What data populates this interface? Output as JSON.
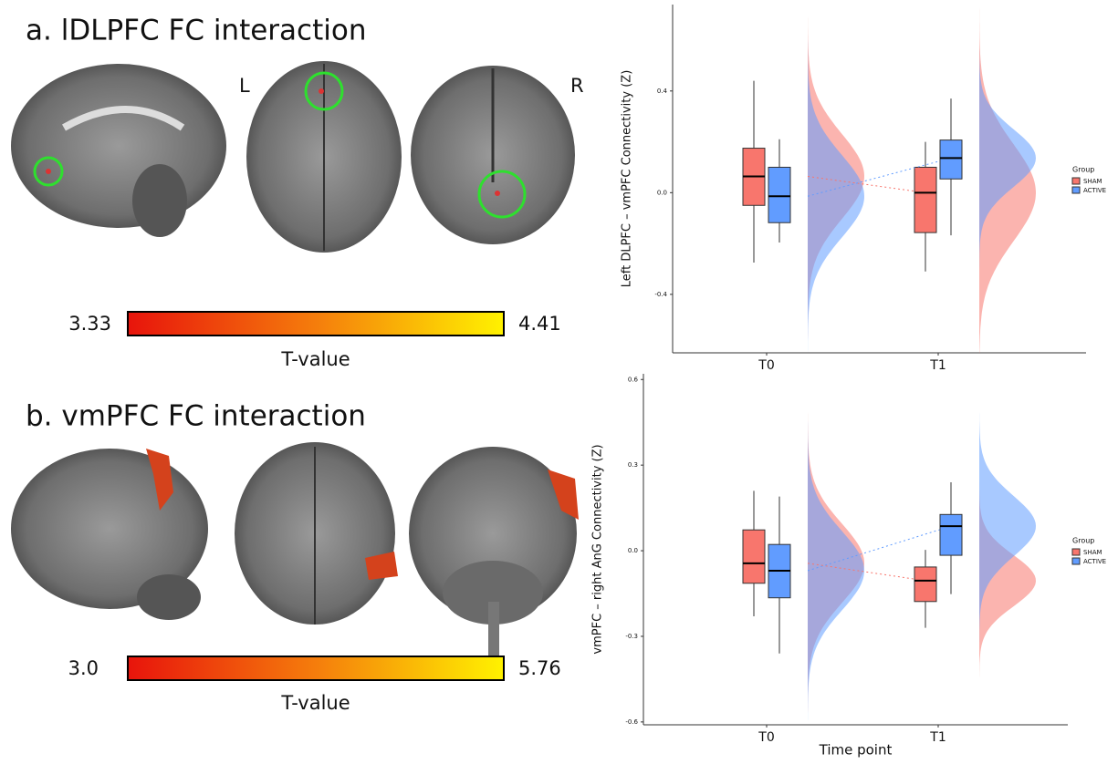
{
  "figure": {
    "panels": [
      {
        "title": "a. lDLPFC FC interaction",
        "hemisphere_labels": [
          "L",
          "R"
        ],
        "colorbar": {
          "min": "3.33",
          "max": "4.41",
          "label": "T-value"
        }
      },
      {
        "title": "b. vmPFC FC interaction",
        "colorbar": {
          "min": "3.0",
          "max": "5.76",
          "label": "T-value"
        }
      }
    ]
  },
  "chart_data": [
    {
      "type": "raincloud",
      "ylabel": "Left DLPFC – vmPFC Connectivity (Z)",
      "categories": [
        "T0",
        "T1"
      ],
      "ylim": [
        -0.63,
        0.74
      ],
      "yticks": [
        -0.4,
        {
          "value": 0,
          "label": "0.0"
        },
        0.4
      ],
      "legend_title": "Group",
      "series": [
        {
          "name": "SHAM",
          "color": "#f8766d",
          "low": [
            -0.275,
            -0.31
          ],
          "q1": [
            -0.05,
            -0.157
          ],
          "median": [
            0.064,
            0.0
          ],
          "q3": [
            0.175,
            0.1
          ],
          "high": [
            0.44,
            0.2
          ]
        },
        {
          "name": "ACTIVE",
          "color": "#619cff",
          "low": [
            -0.196,
            -0.168
          ],
          "q1": [
            -0.118,
            0.054
          ],
          "median": [
            -0.014,
            0.136
          ],
          "q3": [
            0.1,
            0.207
          ],
          "high": [
            0.21,
            0.37
          ]
        }
      ]
    },
    {
      "type": "raincloud",
      "ylabel": "vmPFC – right AnG Connectivity (Z)",
      "xlabel": "Time point",
      "categories": [
        "T0",
        "T1"
      ],
      "ylim": [
        -0.61,
        0.62
      ],
      "yticks": [
        -0.6,
        -0.3,
        {
          "value": 0,
          "label": "0.0"
        },
        0.3,
        0.6
      ],
      "legend_title": "Group",
      "series": [
        {
          "name": "SHAM",
          "color": "#f8766d",
          "low": [
            -0.23,
            -0.27
          ],
          "q1": [
            -0.114,
            -0.178
          ],
          "median": [
            -0.044,
            -0.105
          ],
          "q3": [
            0.073,
            -0.057
          ],
          "high": [
            0.21,
            0.003
          ]
        },
        {
          "name": "ACTIVE",
          "color": "#619cff",
          "low": [
            -0.36,
            -0.152
          ],
          "q1": [
            -0.165,
            -0.016
          ],
          "median": [
            -0.07,
            0.086
          ],
          "q3": [
            0.022,
            0.127
          ],
          "high": [
            0.19,
            0.24
          ]
        }
      ]
    }
  ]
}
